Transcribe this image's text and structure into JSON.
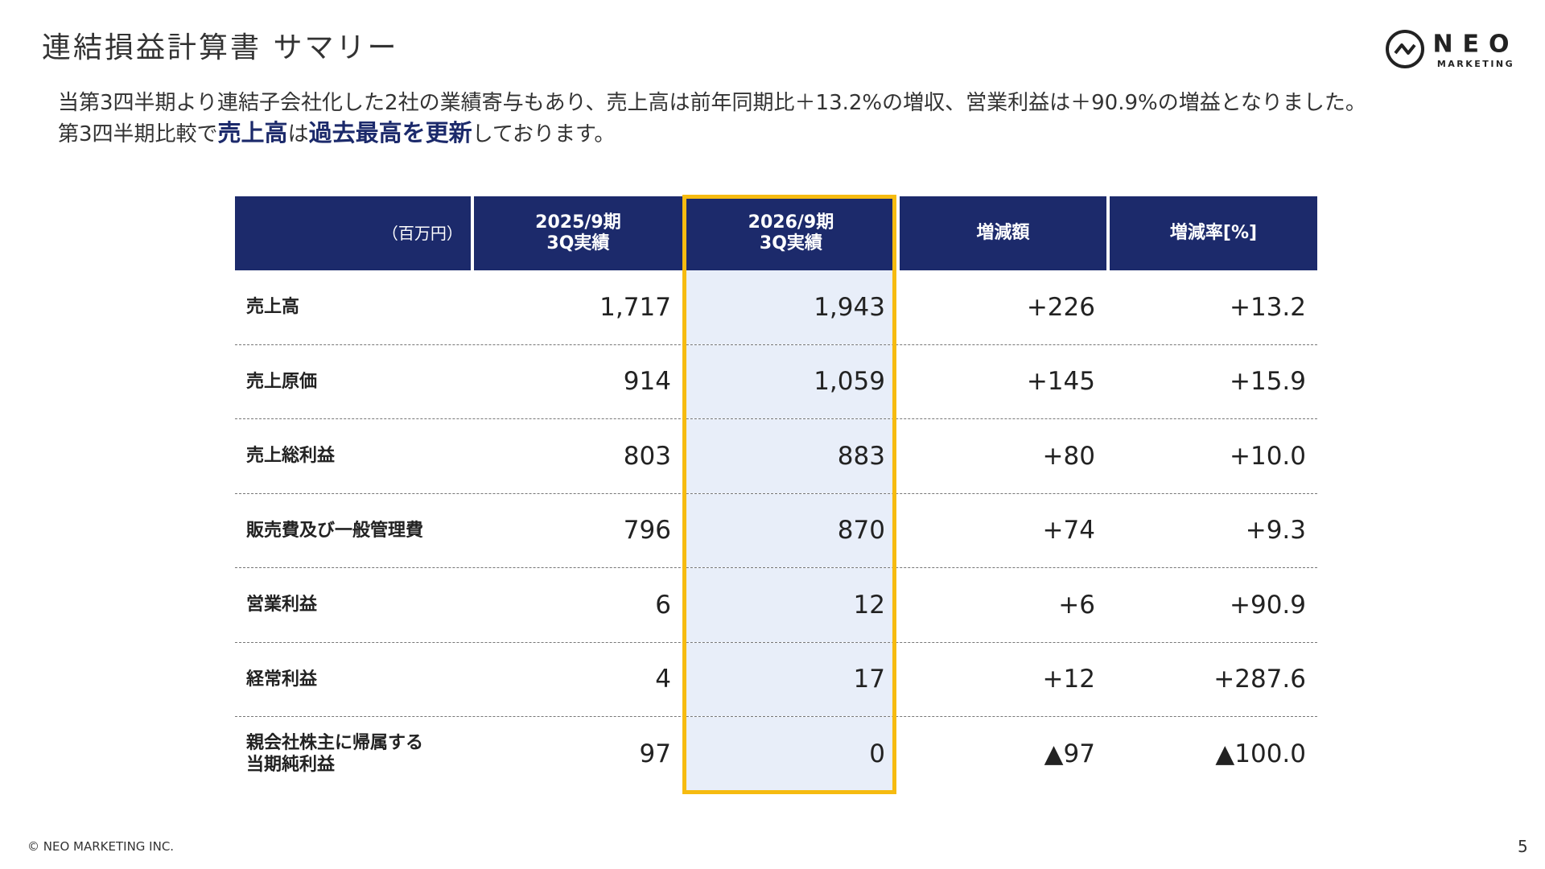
{
  "header": {
    "title": "連結損益計算書 サマリー",
    "logo": {
      "name": "NEO",
      "sub": "MARKETING"
    }
  },
  "intro": {
    "paragraphs": [
      [
        {
          "text": "当第3四半期より連結子会社化した2社の業績寄与もあり、売上高は前年同期比＋13.2%の増収、営業利益は＋90.9%の増益となりました。",
          "emphasis": false
        }
      ],
      [
        {
          "text": "第3四半期比較で",
          "emphasis": false
        },
        {
          "text": "売上高",
          "emphasis": true
        },
        {
          "text": "は",
          "emphasis": false
        },
        {
          "text": "過去最高を更新",
          "emphasis": true
        },
        {
          "text": "しております。",
          "emphasis": false
        }
      ]
    ]
  },
  "table": {
    "unit": "（百万円）",
    "columns": [
      [
        "2025/9期",
        "3Q実績"
      ],
      [
        "2026/9期",
        "3Q実績"
      ],
      [
        "増減額"
      ],
      [
        "増減率[%]"
      ]
    ],
    "highlight_column": 1,
    "rows": [
      [
        "売上高",
        "1,717",
        "1,943",
        "+226",
        "+13.2"
      ],
      [
        "売上原価",
        "914",
        "1,059",
        "+145",
        "+15.9"
      ],
      [
        "売上総利益",
        "803",
        "883",
        "+80",
        "+10.0"
      ],
      [
        "販売費及び一般管理費",
        "796",
        "870",
        "+74",
        "+9.3"
      ],
      [
        "営業利益",
        "6",
        "12",
        "+6",
        "+90.9"
      ],
      [
        "経常利益",
        "4",
        "17",
        "+12",
        "+287.6"
      ],
      [
        "親会社株主に帰属する\n当期純利益",
        "97",
        "0",
        "▲97",
        "▲100.0"
      ]
    ]
  },
  "footer": {
    "copyright": "© NEO MARKETING INC.",
    "page": "5"
  }
}
